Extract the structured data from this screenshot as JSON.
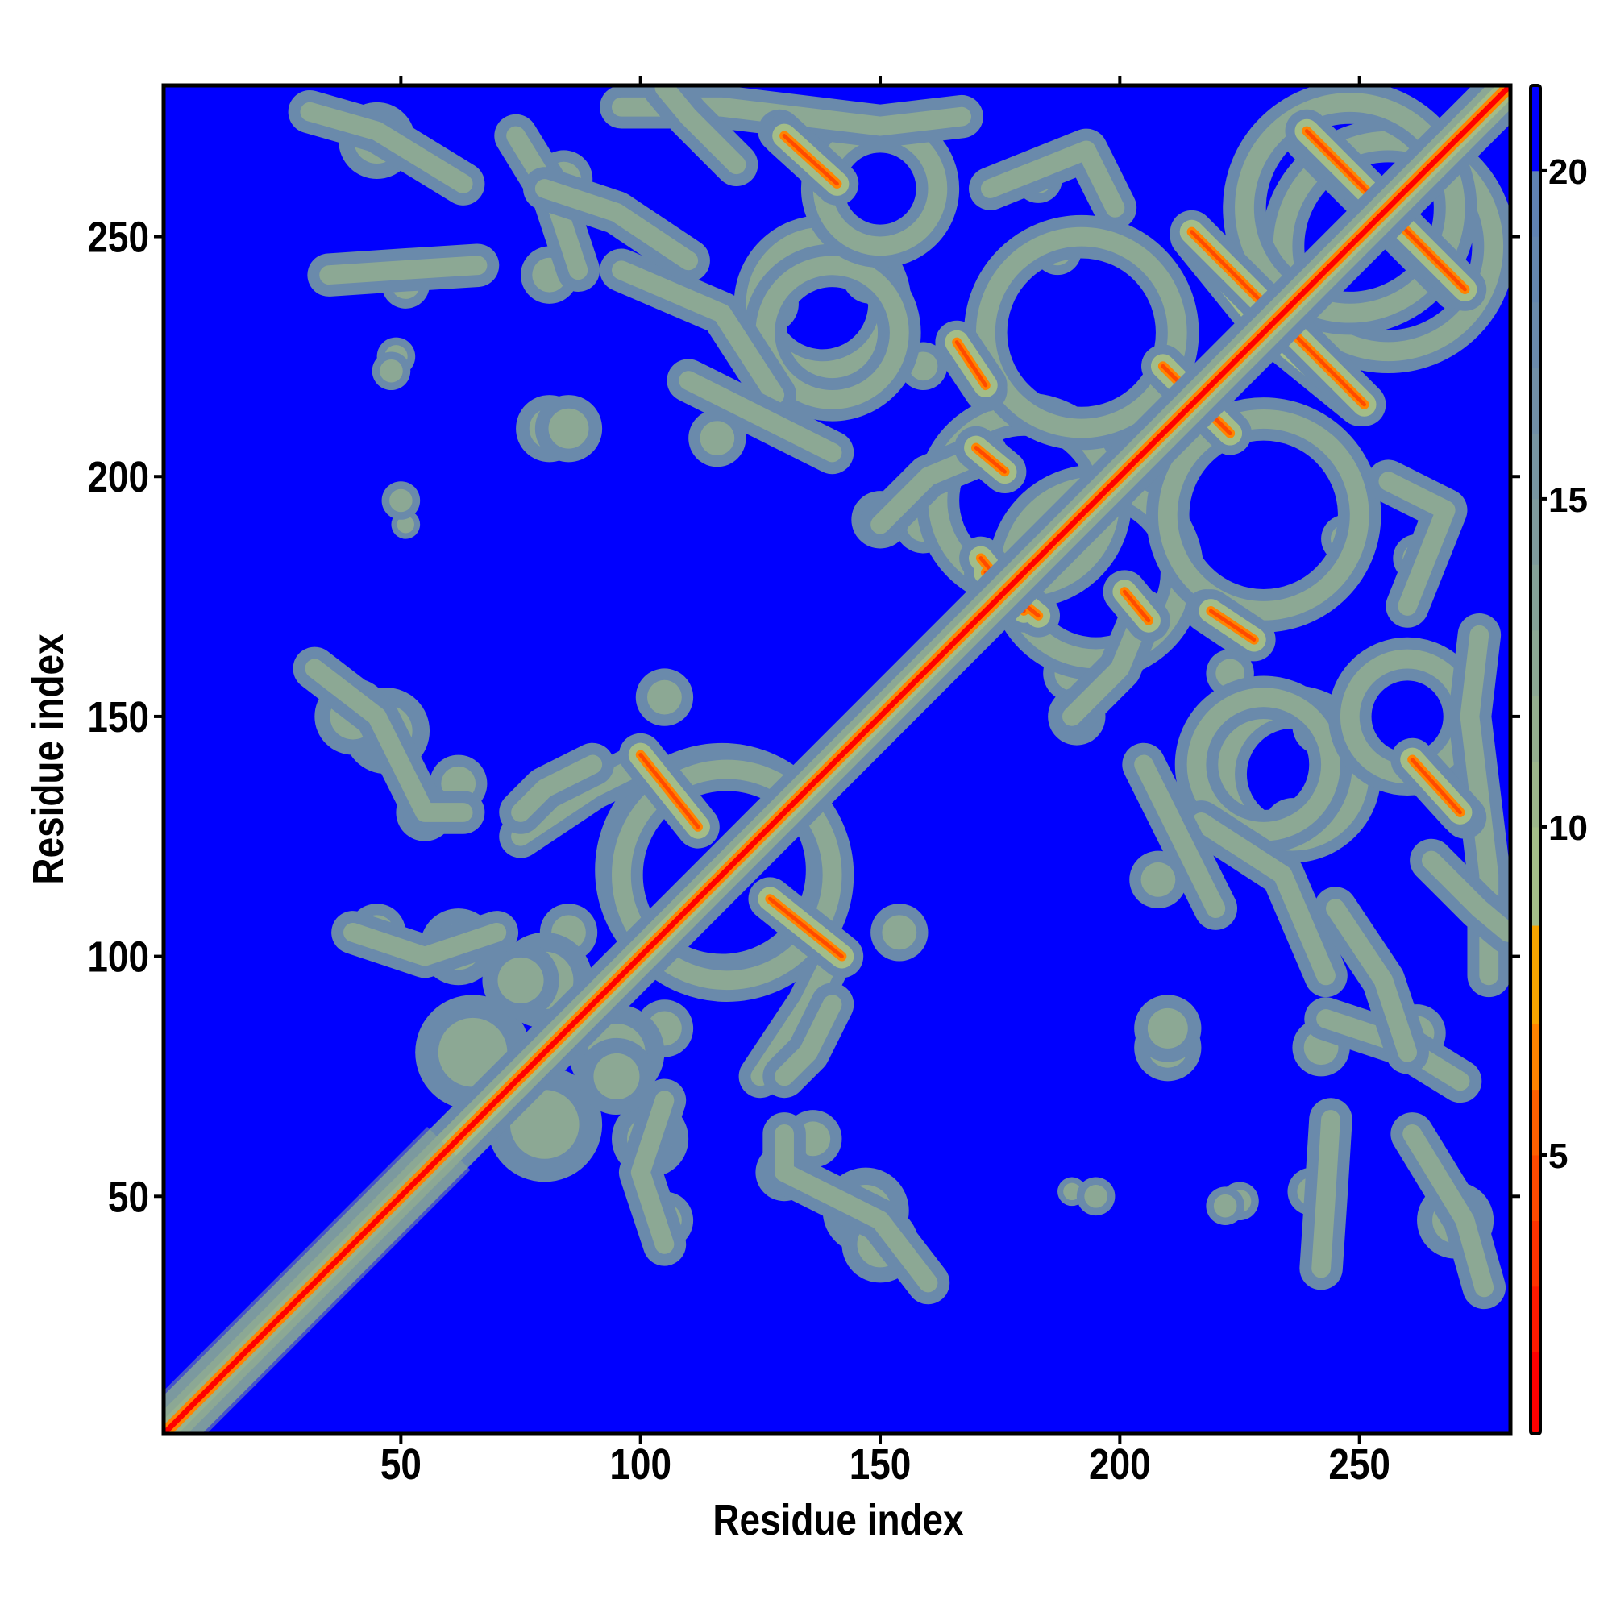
{
  "chart_data": {
    "type": "heatmap",
    "title": "",
    "xlabel": "Residue index",
    "ylabel": "Residue index",
    "xlim": [
      0.5,
      281.5
    ],
    "ylim": [
      0.5,
      281.5
    ],
    "n_residues": 281,
    "xticks": [
      50,
      100,
      150,
      200,
      250
    ],
    "yticks": [
      50,
      100,
      150,
      200,
      250
    ],
    "grid": false,
    "symmetric": true,
    "colorbar": {
      "range": [
        0.75,
        21.3
      ],
      "ticks": [
        5,
        10,
        15,
        20
      ],
      "placement": "right",
      "segments": [
        {
          "from": 0.75,
          "to": 2,
          "color": "#ff0000"
        },
        {
          "from": 2,
          "to": 3,
          "color": "#ff1a00"
        },
        {
          "from": 3,
          "to": 4,
          "color": "#ff3300"
        },
        {
          "from": 4,
          "to": 5,
          "color": "#ff4a00"
        },
        {
          "from": 5,
          "to": 6,
          "color": "#ff6000"
        },
        {
          "from": 6,
          "to": 7,
          "color": "#ff8400"
        },
        {
          "from": 7,
          "to": 8.5,
          "color": "#f6a500"
        },
        {
          "from": 8.5,
          "to": 10,
          "color": "#a3bd88"
        },
        {
          "from": 10,
          "to": 11,
          "color": "#9cb68b"
        },
        {
          "from": 11,
          "to": 12,
          "color": "#94ae8f"
        },
        {
          "from": 12,
          "to": 13,
          "color": "#8ca894"
        },
        {
          "from": 13,
          "to": 14,
          "color": "#85a198"
        },
        {
          "from": 14,
          "to": 15,
          "color": "#7e9a9c"
        },
        {
          "from": 15,
          "to": 16,
          "color": "#7795a1"
        },
        {
          "from": 16,
          "to": 17,
          "color": "#708fa6"
        },
        {
          "from": 17,
          "to": 18,
          "color": "#6a8aab"
        },
        {
          "from": 18,
          "to": 19,
          "color": "#6486af"
        },
        {
          "from": 19,
          "to": 20,
          "color": "#5f82b3"
        },
        {
          "from": 20,
          "to": 21.3,
          "color": "#0000ff"
        }
      ]
    },
    "background_value": 21,
    "diagonal": {
      "core_value": 1,
      "near_value": 5,
      "halo_value": 12
    },
    "strands": [
      [
        127,
        112,
        142,
        100
      ],
      [
        209,
        223,
        223,
        209
      ],
      [
        215,
        250,
        228,
        234
      ],
      [
        239,
        270,
        253,
        256
      ],
      [
        236,
        230,
        251,
        215
      ],
      [
        257,
        254,
        272,
        239
      ],
      [
        262,
        140,
        272,
        129
      ],
      [
        218,
        172,
        227,
        166
      ],
      [
        166,
        228,
        172,
        219
      ],
      [
        130,
        271,
        141,
        261
      ],
      [
        201,
        176,
        206,
        170
      ],
      [
        171,
        183,
        180,
        172
      ]
    ],
    "rings": [
      [
        117,
        118,
        22
      ],
      [
        195,
        180,
        18
      ],
      [
        256,
        248,
        22
      ],
      [
        192,
        230,
        20
      ],
      [
        138,
        236,
        14
      ],
      [
        230,
        140,
        14
      ],
      [
        260,
        150,
        12
      ]
    ],
    "paths": [
      [
        [
          31,
          276
        ],
        [
          45,
          272
        ],
        [
          63,
          261
        ]
      ],
      [
        [
          74,
          271
        ],
        [
          82,
          258
        ],
        [
          87,
          243
        ]
      ],
      [
        [
          35,
          242
        ],
        [
          50,
          243
        ],
        [
          66,
          244
        ]
      ],
      [
        [
          96,
          277
        ],
        [
          117,
          277
        ],
        [
          150,
          273
        ],
        [
          167,
          275
        ]
      ],
      [
        [
          96,
          243
        ],
        [
          117,
          234
        ],
        [
          128,
          217
        ]
      ],
      [
        [
          173,
          260
        ],
        [
          193,
          268
        ],
        [
          199,
          256
        ]
      ],
      [
        [
          32,
          160
        ],
        [
          45,
          150
        ],
        [
          55,
          130
        ],
        [
          63,
          130
        ]
      ],
      [
        [
          40,
          105
        ],
        [
          55,
          100
        ],
        [
          70,
          105
        ]
      ],
      [
        [
          75,
          125
        ],
        [
          90,
          135
        ],
        [
          100,
          140
        ]
      ],
      [
        [
          140,
          90
        ],
        [
          135,
          80
        ],
        [
          130,
          75
        ]
      ],
      [
        [
          150,
          190
        ],
        [
          160,
          200
        ],
        [
          172,
          205
        ]
      ],
      [
        [
          205,
          140
        ],
        [
          215,
          120
        ],
        [
          220,
          110
        ]
      ],
      [
        [
          245,
          110
        ],
        [
          255,
          95
        ],
        [
          260,
          80
        ]
      ],
      [
        [
          265,
          120
        ],
        [
          275,
          110
        ],
        [
          281,
          105
        ]
      ]
    ],
    "blobs": [
      [
        210,
        81,
        7
      ],
      [
        242,
        81,
        6
      ],
      [
        262,
        84,
        6
      ],
      [
        270,
        45,
        8
      ],
      [
        240,
        51,
        5
      ],
      [
        225,
        49,
        4
      ],
      [
        190,
        51,
        3
      ],
      [
        147,
        47,
        9
      ],
      [
        136,
        62,
        6
      ],
      [
        102,
        62,
        8
      ],
      [
        135,
        86,
        6
      ],
      [
        154,
        105,
        6
      ],
      [
        40,
        150,
        8
      ],
      [
        55,
        130,
        6
      ],
      [
        45,
        105,
        6
      ],
      [
        85,
        105,
        6
      ],
      [
        100,
        135,
        5
      ],
      [
        85,
        210,
        7
      ],
      [
        48,
        222,
        4
      ],
      [
        50,
        195,
        4
      ],
      [
        190,
        159,
        6
      ],
      [
        223,
        159,
        5
      ],
      [
        242,
        148,
        6
      ],
      [
        208,
        116,
        6
      ],
      [
        236,
        127,
        6
      ],
      [
        150,
        191,
        6
      ],
      [
        247,
        187,
        5
      ],
      [
        262,
        183,
        5
      ],
      [
        65,
        80,
        12
      ],
      [
        80,
        95,
        10
      ],
      [
        95,
        75,
        8
      ]
    ]
  }
}
